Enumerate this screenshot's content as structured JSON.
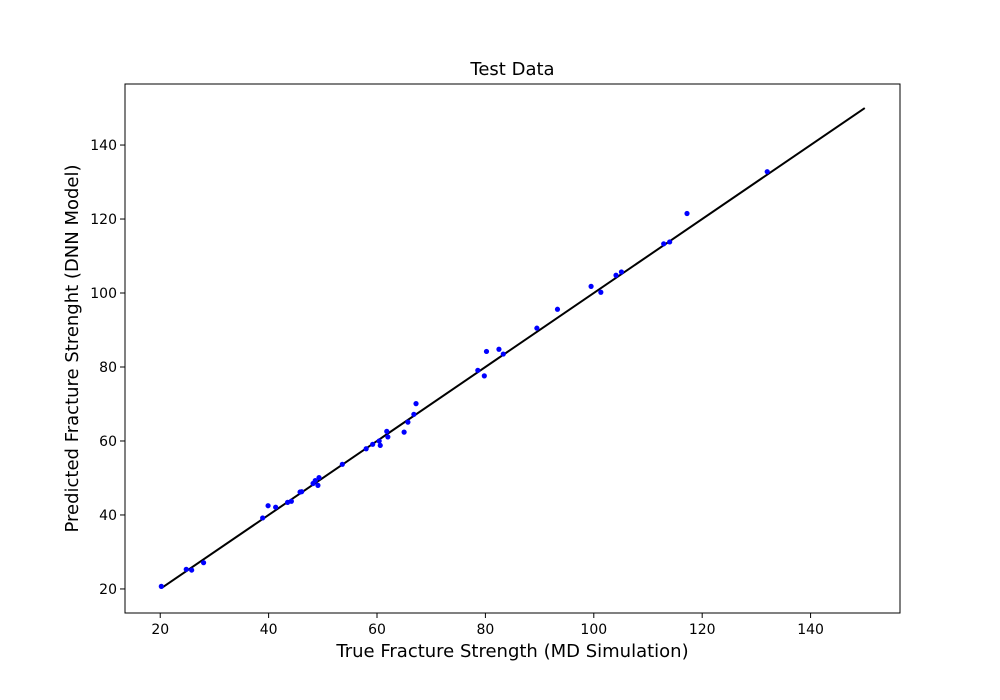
{
  "chart_data": {
    "type": "scatter",
    "title": "Test Data",
    "xlabel": "True Fracture Strength (MD Simulation)",
    "ylabel": "Predicted Fracture Strenght (DNN Model)",
    "xlim": [
      13.5,
      156.5
    ],
    "ylim": [
      13.5,
      156.5
    ],
    "xticks": [
      20,
      40,
      60,
      80,
      100,
      120,
      140
    ],
    "yticks": [
      20,
      40,
      60,
      80,
      100,
      120,
      140
    ],
    "tick_labels_x": [
      "20",
      "40",
      "60",
      "80",
      "100",
      "120",
      "140"
    ],
    "tick_labels_y": [
      "20",
      "40",
      "60",
      "80",
      "100",
      "120",
      "140"
    ],
    "grid": false,
    "series": [
      {
        "kind": "points",
        "color": "#0000ff",
        "points": [
          [
            20.2,
            20.7
          ],
          [
            24.8,
            25.3
          ],
          [
            25.8,
            25.1
          ],
          [
            28.0,
            27.1
          ],
          [
            38.9,
            39.2
          ],
          [
            39.9,
            42.5
          ],
          [
            41.3,
            42.1
          ],
          [
            43.5,
            43.4
          ],
          [
            44.2,
            43.7
          ],
          [
            45.8,
            46.2
          ],
          [
            46.1,
            46.3
          ],
          [
            48.2,
            48.5
          ],
          [
            48.6,
            49.3
          ],
          [
            49.1,
            48.0
          ],
          [
            49.3,
            50.1
          ],
          [
            53.6,
            53.7
          ],
          [
            58.0,
            57.9
          ],
          [
            59.2,
            59.1
          ],
          [
            60.4,
            60.0
          ],
          [
            60.6,
            58.8
          ],
          [
            61.8,
            62.6
          ],
          [
            62.0,
            61.1
          ],
          [
            65.0,
            62.4
          ],
          [
            65.7,
            65.1
          ],
          [
            66.8,
            67.2
          ],
          [
            67.2,
            70.1
          ],
          [
            78.6,
            79.1
          ],
          [
            79.8,
            77.6
          ],
          [
            80.2,
            84.2
          ],
          [
            82.5,
            84.8
          ],
          [
            83.3,
            83.5
          ],
          [
            89.5,
            90.5
          ],
          [
            93.3,
            95.6
          ],
          [
            99.5,
            101.8
          ],
          [
            101.3,
            100.2
          ],
          [
            104.1,
            104.8
          ],
          [
            105.1,
            105.7
          ],
          [
            112.9,
            113.3
          ],
          [
            114.0,
            113.8
          ],
          [
            117.2,
            121.5
          ],
          [
            132.0,
            132.8
          ]
        ]
      },
      {
        "kind": "line",
        "color": "#000000",
        "points": [
          [
            20.2,
            20.2
          ],
          [
            150.0,
            150.0
          ]
        ]
      }
    ]
  }
}
